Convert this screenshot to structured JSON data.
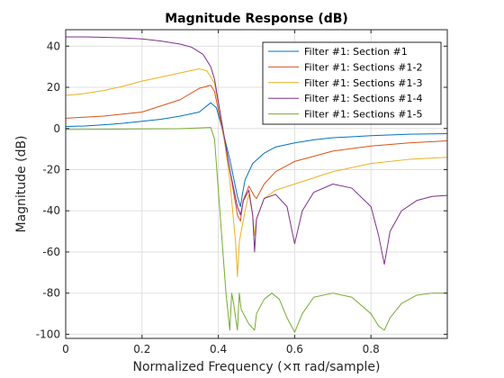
{
  "chart_data": {
    "type": "line",
    "title": "Magnitude Response (dB)",
    "xlabel": "Normalized Frequency (×π rad/sample)",
    "ylabel": "Magnitude (dB)",
    "xlim": [
      0,
      1
    ],
    "ylim": [
      -102,
      48
    ],
    "x_ticks": [
      0,
      0.2,
      0.4,
      0.6,
      0.8
    ],
    "x_tick_labels": [
      "0",
      "0.2",
      "0.4",
      "0.6",
      "0.8"
    ],
    "y_ticks": [
      40,
      20,
      0,
      -20,
      -40,
      -60,
      -80,
      -100
    ],
    "y_tick_labels": [
      "40",
      "20",
      "0",
      "-20",
      "-40",
      "-60",
      "-80",
      "-100"
    ],
    "grid": true,
    "legend_position": "top-right",
    "series": [
      {
        "name": "Filter #1: Section #1",
        "color": "#0072BD",
        "points": [
          [
            0,
            1
          ],
          [
            0.05,
            1.2
          ],
          [
            0.1,
            1.8
          ],
          [
            0.15,
            2.5
          ],
          [
            0.2,
            3.5
          ],
          [
            0.25,
            4.5
          ],
          [
            0.3,
            6
          ],
          [
            0.35,
            8
          ],
          [
            0.38,
            12.5
          ],
          [
            0.395,
            10
          ],
          [
            0.41,
            0
          ],
          [
            0.43,
            -15
          ],
          [
            0.45,
            -33
          ],
          [
            0.458,
            -38
          ],
          [
            0.463,
            -32
          ],
          [
            0.47,
            -25
          ],
          [
            0.49,
            -17
          ],
          [
            0.52,
            -12
          ],
          [
            0.55,
            -9
          ],
          [
            0.6,
            -7
          ],
          [
            0.65,
            -5.5
          ],
          [
            0.7,
            -4.5
          ],
          [
            0.8,
            -3.5
          ],
          [
            0.9,
            -2.8
          ],
          [
            1.0,
            -2.5
          ]
        ]
      },
      {
        "name": "Filter #1: Sections #1-2",
        "color": "#D95319",
        "points": [
          [
            0,
            5
          ],
          [
            0.1,
            6
          ],
          [
            0.2,
            8
          ],
          [
            0.3,
            14
          ],
          [
            0.35,
            19.5
          ],
          [
            0.38,
            21
          ],
          [
            0.39,
            18
          ],
          [
            0.41,
            0
          ],
          [
            0.43,
            -20
          ],
          [
            0.45,
            -42
          ],
          [
            0.458,
            -45
          ],
          [
            0.465,
            -35
          ],
          [
            0.48,
            -28
          ],
          [
            0.495,
            -33
          ],
          [
            0.5,
            -34
          ],
          [
            0.52,
            -27
          ],
          [
            0.55,
            -21
          ],
          [
            0.6,
            -16
          ],
          [
            0.7,
            -11
          ],
          [
            0.8,
            -8.5
          ],
          [
            0.9,
            -7
          ],
          [
            1.0,
            -6
          ]
        ]
      },
      {
        "name": "Filter #1: Sections #1-3",
        "color": "#EDB120",
        "points": [
          [
            0,
            16
          ],
          [
            0.05,
            17
          ],
          [
            0.1,
            18.5
          ],
          [
            0.15,
            20.5
          ],
          [
            0.2,
            23
          ],
          [
            0.25,
            25
          ],
          [
            0.3,
            27
          ],
          [
            0.35,
            29
          ],
          [
            0.37,
            28
          ],
          [
            0.39,
            22
          ],
          [
            0.41,
            2
          ],
          [
            0.43,
            -25
          ],
          [
            0.445,
            -55
          ],
          [
            0.45,
            -72
          ],
          [
            0.455,
            -55
          ],
          [
            0.47,
            -40
          ],
          [
            0.48,
            -32
          ],
          [
            0.49,
            -42
          ],
          [
            0.495,
            -52
          ],
          [
            0.5,
            -44
          ],
          [
            0.52,
            -34
          ],
          [
            0.55,
            -30
          ],
          [
            0.6,
            -27
          ],
          [
            0.7,
            -21
          ],
          [
            0.8,
            -17
          ],
          [
            0.9,
            -15
          ],
          [
            1.0,
            -14
          ]
        ]
      },
      {
        "name": "Filter #1: Sections #1-4",
        "color": "#7E2F8E",
        "points": [
          [
            0,
            44.5
          ],
          [
            0.05,
            44.5
          ],
          [
            0.1,
            44.3
          ],
          [
            0.15,
            44
          ],
          [
            0.2,
            43.5
          ],
          [
            0.25,
            42.5
          ],
          [
            0.3,
            41
          ],
          [
            0.33,
            39.5
          ],
          [
            0.36,
            36
          ],
          [
            0.38,
            30
          ],
          [
            0.39,
            24
          ],
          [
            0.41,
            2
          ],
          [
            0.43,
            -20
          ],
          [
            0.45,
            -38
          ],
          [
            0.458,
            -42
          ],
          [
            0.466,
            -35
          ],
          [
            0.48,
            -30
          ],
          [
            0.49,
            -42
          ],
          [
            0.495,
            -60
          ],
          [
            0.5,
            -44
          ],
          [
            0.52,
            -34
          ],
          [
            0.55,
            -32
          ],
          [
            0.58,
            -38
          ],
          [
            0.6,
            -56
          ],
          [
            0.62,
            -40
          ],
          [
            0.65,
            -31
          ],
          [
            0.7,
            -27
          ],
          [
            0.75,
            -29
          ],
          [
            0.8,
            -38
          ],
          [
            0.82,
            -52
          ],
          [
            0.835,
            -66
          ],
          [
            0.85,
            -50
          ],
          [
            0.88,
            -40
          ],
          [
            0.92,
            -35
          ],
          [
            0.96,
            -33
          ],
          [
            1.0,
            -32.5
          ]
        ]
      },
      {
        "name": "Filter #1: Sections #1-5",
        "color": "#77AC30",
        "points": [
          [
            0,
            -0.5
          ],
          [
            0.1,
            -0.4
          ],
          [
            0.2,
            -0.2
          ],
          [
            0.3,
            -0.1
          ],
          [
            0.38,
            0.5
          ],
          [
            0.39,
            -5
          ],
          [
            0.4,
            -30
          ],
          [
            0.41,
            -55
          ],
          [
            0.42,
            -80
          ],
          [
            0.43,
            -98
          ],
          [
            0.435,
            -80
          ],
          [
            0.44,
            -85
          ],
          [
            0.45,
            -98
          ],
          [
            0.455,
            -80
          ],
          [
            0.46,
            -88
          ],
          [
            0.48,
            -95
          ],
          [
            0.495,
            -98
          ],
          [
            0.5,
            -90
          ],
          [
            0.52,
            -83
          ],
          [
            0.54,
            -80
          ],
          [
            0.56,
            -83
          ],
          [
            0.58,
            -92
          ],
          [
            0.6,
            -99
          ],
          [
            0.62,
            -90
          ],
          [
            0.65,
            -82
          ],
          [
            0.7,
            -80
          ],
          [
            0.75,
            -82
          ],
          [
            0.8,
            -90
          ],
          [
            0.82,
            -96
          ],
          [
            0.835,
            -98
          ],
          [
            0.85,
            -92
          ],
          [
            0.88,
            -85
          ],
          [
            0.92,
            -81
          ],
          [
            0.96,
            -80
          ],
          [
            1.0,
            -80
          ]
        ]
      }
    ]
  }
}
